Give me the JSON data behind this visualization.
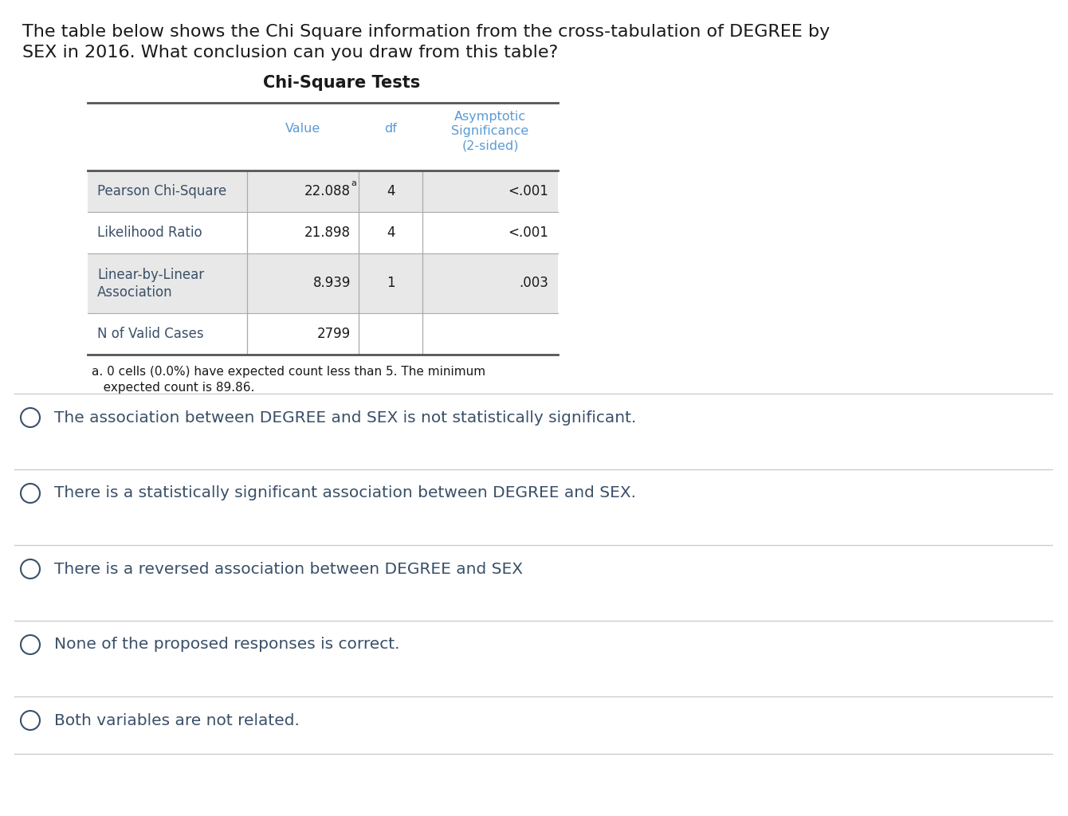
{
  "title_text_line1": "The table below shows the Chi Square information from the cross-tabulation of DEGREE by",
  "title_text_line2": "SEX in 2016. What conclusion can you draw from this table?",
  "table_title": "Chi-Square Tests",
  "header_col1": "Value",
  "header_col2": "df",
  "header_col3_line1": "Asymptotic",
  "header_col3_line2": "Significance",
  "header_col3_line3": "(2-sided)",
  "rows": [
    [
      "Pearson Chi-Square",
      "22.088",
      "a",
      "4",
      "<.001"
    ],
    [
      "Likelihood Ratio",
      "21.898",
      "",
      "4",
      "<.001"
    ],
    [
      "Linear-by-Linear\nAssociation",
      "8.939",
      "",
      "1",
      ".003"
    ],
    [
      "N of Valid Cases",
      "2799",
      "",
      "",
      ""
    ]
  ],
  "footnote_line1": "a. 0 cells (0.0%) have expected count less than 5. The minimum",
  "footnote_line2": "   expected count is 89.86.",
  "options": [
    "The association between DEGREE and SEX is not statistically significant.",
    "There is a statistically significant association between DEGREE and SEX.",
    "There is a reversed association between DEGREE and SEX",
    "None of the proposed responses is correct.",
    "Both variables are not related."
  ],
  "bg_color": "#ffffff",
  "title_color": "#1a1a1a",
  "row_label_color": "#3a5068",
  "cell_value_color": "#1a1a1a",
  "header_color": "#5b9bd5",
  "option_text_color": "#3a5068",
  "option_circle_color": "#3a5068",
  "row_bg_gray": "#e8e8e8",
  "row_bg_white": "#ffffff",
  "table_border_color": "#555555",
  "table_inner_color": "#aaaaaa",
  "option_line_color": "#cccccc",
  "footnote_color": "#1a1a1a"
}
